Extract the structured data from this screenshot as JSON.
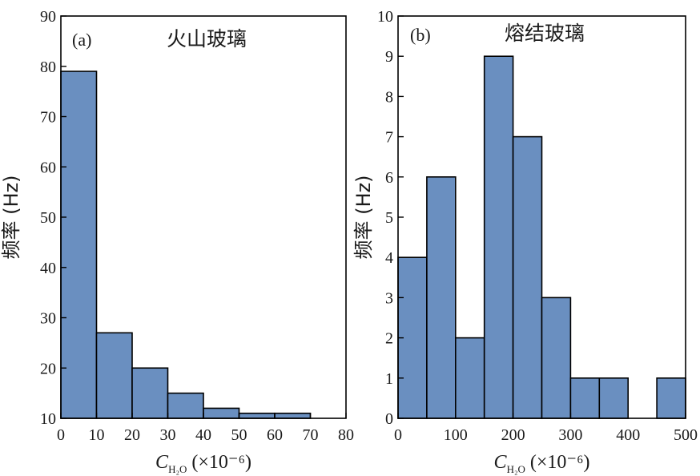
{
  "bar_color": "#6a8fc0",
  "chart_data": [
    {
      "type": "bar",
      "panel": "(a)",
      "title": "火山玻璃",
      "ylabel": "频率 (Hz)",
      "xlabel_main": "C",
      "xlabel_sub": "H₂O",
      "xlabel_rest": " (×10⁻⁶)",
      "xlim": [
        0,
        80
      ],
      "ylim": [
        10,
        90
      ],
      "xticks": [
        0,
        10,
        20,
        30,
        40,
        50,
        60,
        70,
        80
      ],
      "yticks": [
        10,
        20,
        30,
        40,
        50,
        60,
        70,
        80,
        90
      ],
      "bins": [
        [
          0,
          10
        ],
        [
          10,
          20
        ],
        [
          20,
          30
        ],
        [
          30,
          40
        ],
        [
          40,
          50
        ],
        [
          50,
          60
        ],
        [
          60,
          70
        ]
      ],
      "values": [
        79,
        27,
        20,
        15,
        12,
        11,
        11
      ]
    },
    {
      "type": "bar",
      "panel": "(b)",
      "title": "熔结玻璃",
      "ylabel": "频率 (Hz)",
      "xlabel_main": "C",
      "xlabel_sub": "H₂O",
      "xlabel_rest": " (×10⁻⁶)",
      "xlim": [
        0,
        500
      ],
      "ylim": [
        0,
        10
      ],
      "xticks": [
        0,
        100,
        200,
        300,
        400,
        500
      ],
      "yticks": [
        0,
        1,
        2,
        3,
        4,
        5,
        6,
        7,
        8,
        9,
        10
      ],
      "bins": [
        [
          0,
          50
        ],
        [
          50,
          100
        ],
        [
          100,
          150
        ],
        [
          150,
          200
        ],
        [
          200,
          250
        ],
        [
          250,
          300
        ],
        [
          300,
          350
        ],
        [
          350,
          400
        ],
        [
          400,
          450
        ],
        [
          450,
          500
        ]
      ],
      "values": [
        4,
        6,
        2,
        9,
        7,
        3,
        1,
        1,
        0,
        1
      ]
    }
  ]
}
